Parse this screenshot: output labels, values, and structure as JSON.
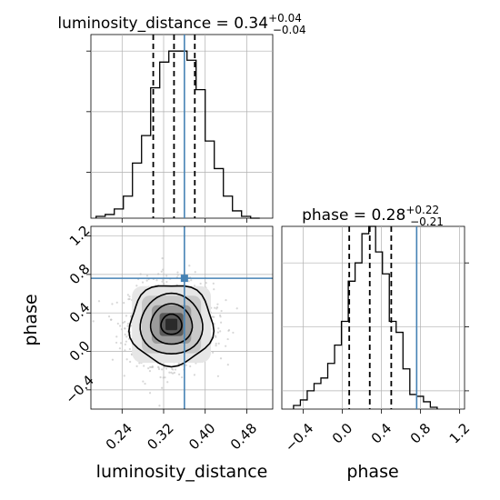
{
  "chart_data": {
    "type": "corner",
    "panels": {
      "luminosity_distance_hist": {
        "type": "histogram",
        "title": {
          "text": "luminosity_distance = 0.34",
          "sup": "+0.04",
          "sub": "−0.04"
        },
        "xlim": [
          0.18,
          0.53
        ],
        "ylim": [
          0,
          1.0
        ],
        "bin_edges": [
          0.19,
          0.2075,
          0.225,
          0.2425,
          0.26,
          0.2775,
          0.295,
          0.3125,
          0.33,
          0.3475,
          0.365,
          0.3825,
          0.4,
          0.4175,
          0.435,
          0.4525,
          0.47,
          0.4875,
          0.505
        ],
        "counts": [
          0.01,
          0.02,
          0.05,
          0.12,
          0.3,
          0.45,
          0.71,
          0.85,
          0.91,
          0.91,
          0.86,
          0.7,
          0.42,
          0.27,
          0.12,
          0.04,
          0.01,
          0.0
        ],
        "quantiles": [
          0.3,
          0.34,
          0.38
        ],
        "truth": 0.36
      },
      "phase_hist": {
        "type": "histogram",
        "title": {
          "text": "phase = 0.28",
          "sup": "+0.22",
          "sub": "−0.21"
        },
        "xlim": [
          -0.62,
          1.25
        ],
        "ylim": [
          0,
          1.0
        ],
        "xticks": [
          -0.4,
          0.0,
          0.4,
          0.8,
          1.2
        ],
        "xticklabels": [
          "−0.4",
          "0.0",
          "0.4",
          "0.8",
          "1.2"
        ],
        "xlabel": "phase",
        "bin_edges": [
          -0.5,
          -0.43,
          -0.36,
          -0.29,
          -0.22,
          -0.15,
          -0.08,
          -0.01,
          0.06,
          0.13,
          0.2,
          0.27,
          0.34,
          0.41,
          0.48,
          0.55,
          0.62,
          0.69,
          0.76,
          0.83,
          0.9,
          0.97
        ],
        "counts": [
          0.02,
          0.05,
          0.1,
          0.14,
          0.17,
          0.25,
          0.35,
          0.48,
          0.7,
          0.8,
          0.96,
          1.0,
          0.86,
          0.74,
          0.48,
          0.42,
          0.22,
          0.08,
          0.07,
          0.04,
          0.01
        ],
        "quantiles": [
          0.07,
          0.28,
          0.5
        ],
        "truth": 0.76
      },
      "joint": {
        "type": "contour-scatter",
        "xlim": [
          0.18,
          0.53
        ],
        "ylim": [
          -0.6,
          1.3
        ],
        "xticks": [
          0.24,
          0.32,
          0.4,
          0.48
        ],
        "xticklabels": [
          "0.24",
          "0.32",
          "0.40",
          "0.48"
        ],
        "yticks": [
          -0.4,
          0.0,
          0.4,
          0.8,
          1.2
        ],
        "yticklabels": [
          "−0.4",
          "0.0",
          "0.4",
          "0.8",
          "1.2"
        ],
        "xlabel": "luminosity_distance",
        "ylabel": "phase",
        "center": [
          0.335,
          0.28
        ],
        "contour_sigmas": [
          0.5,
          1.0,
          1.5,
          2.0
        ],
        "contour_widths": [
          0.04,
          0.21
        ],
        "truth": [
          0.36,
          0.76
        ]
      }
    },
    "colors": {
      "hist": "#000000",
      "truth": "#4682b4",
      "grid": "#b0b0b0",
      "scatter": "#bdbdbd"
    }
  }
}
